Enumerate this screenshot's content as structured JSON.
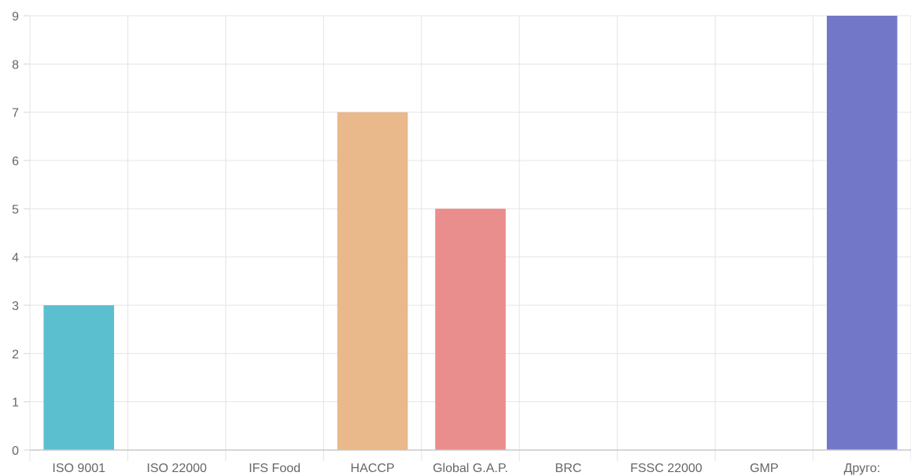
{
  "chart_data": {
    "type": "bar",
    "categories": [
      "ISO 9001",
      "ISO 22000",
      "IFS Food",
      "HACCP",
      "Global G.A.P.",
      "BRC",
      "FSSC 22000",
      "GMP",
      "Друго:"
    ],
    "values": [
      3,
      0,
      0,
      7,
      5,
      0,
      0,
      0,
      9
    ],
    "colors": [
      "#5bbfcf",
      "#5bbfcf",
      "#5bbfcf",
      "#e9b88b",
      "#e98d8d",
      "#e98d8d",
      "#e98d8d",
      "#e98d8d",
      "#7278c7"
    ],
    "ylim": [
      0,
      9
    ],
    "yticks": [
      "0",
      "1",
      "2",
      "3",
      "4",
      "5",
      "6",
      "7",
      "8",
      "9"
    ],
    "grid": true,
    "legend": "none"
  }
}
